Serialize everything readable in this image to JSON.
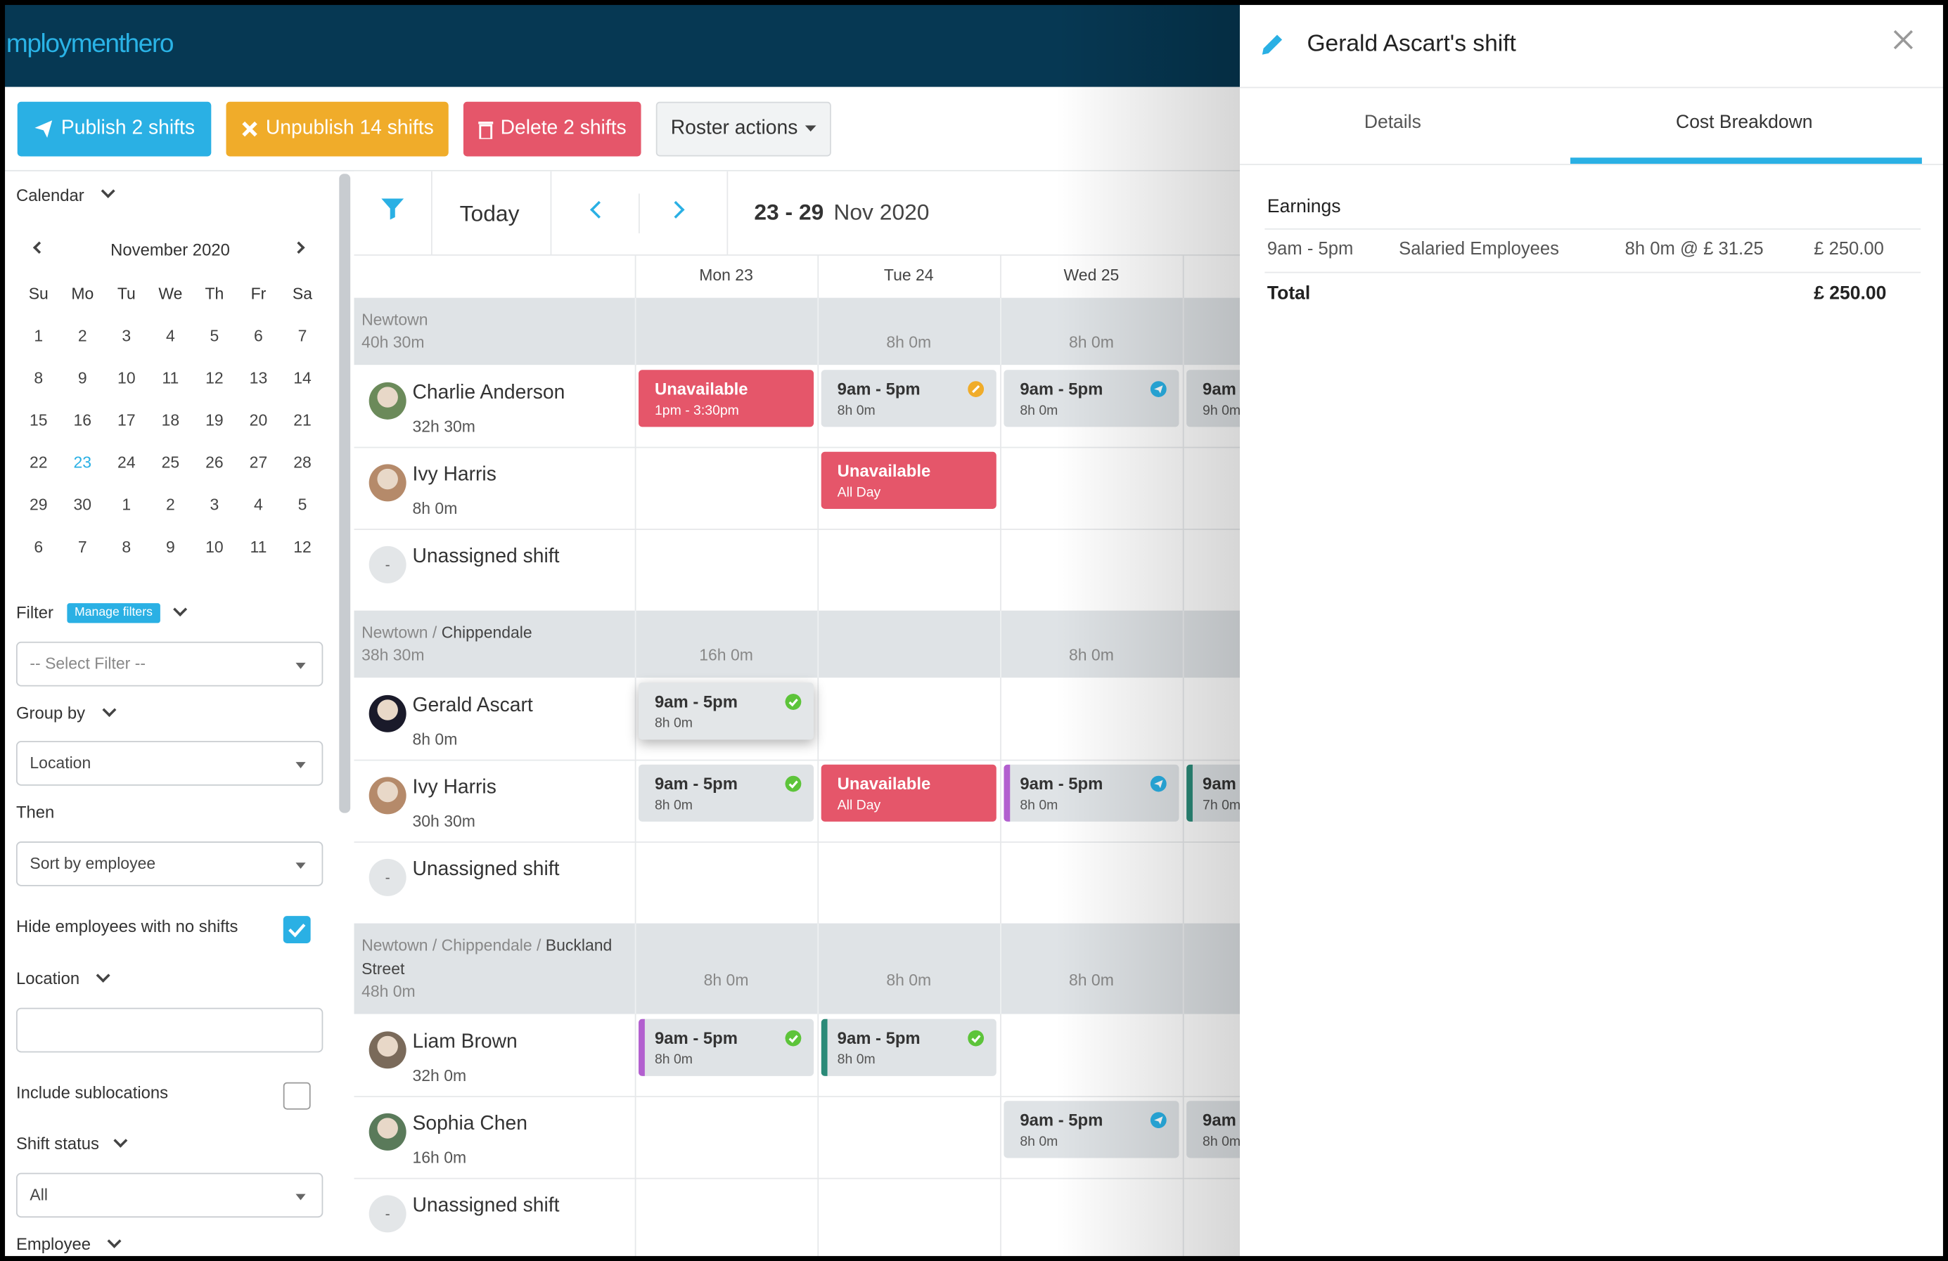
{
  "header": {
    "logo": "mploymenthero"
  },
  "toolbar": {
    "publish": "Publish 2 shifts",
    "unpublish": "Unpublish 14 shifts",
    "delete": "Delete 2 shifts",
    "roster_actions": "Roster actions"
  },
  "sidebar": {
    "calendar_label": "Calendar",
    "month": "November 2020",
    "weekdays": [
      "Su",
      "Mo",
      "Tu",
      "We",
      "Th",
      "Fr",
      "Sa"
    ],
    "weeks": [
      [
        1,
        2,
        3,
        4,
        5,
        6,
        7
      ],
      [
        8,
        9,
        10,
        11,
        12,
        13,
        14
      ],
      [
        15,
        16,
        17,
        18,
        19,
        20,
        21
      ],
      [
        22,
        23,
        24,
        25,
        26,
        27,
        28
      ],
      [
        29,
        30,
        1,
        2,
        3,
        4,
        5
      ],
      [
        6,
        7,
        8,
        9,
        10,
        11,
        12
      ]
    ],
    "today": 23,
    "filter_label": "Filter",
    "manage_filters": "Manage filters",
    "filter_placeholder": "-- Select Filter --",
    "group_by_label": "Group by",
    "group_by_value": "Location",
    "then_label": "Then",
    "then_value": "Sort by employee",
    "hide_label": "Hide employees with no shifts",
    "hide_checked": true,
    "location_label": "Location",
    "sublocations_label": "Include sublocations",
    "sublocations_checked": false,
    "shift_status_label": "Shift status",
    "shift_status_value": "All",
    "employee_label": "Employee"
  },
  "roster": {
    "today": "Today",
    "range": "23 - 29",
    "month": "Nov 2020",
    "days": [
      "Mon 23",
      "Tue 24",
      "Wed 25"
    ],
    "groups": [
      {
        "location": "Newtown",
        "total": "40h 30m",
        "day_totals": [
          null,
          "8h 0m",
          "8h 0m"
        ],
        "rows": [
          {
            "name": "Charlie Anderson",
            "hours": "32h 30m",
            "avatar": "#6b8a5a",
            "cells": [
              {
                "time": "Unavailable",
                "hours": "1pm - 3:30pm",
                "status": "unavailable"
              },
              {
                "time": "9am - 5pm",
                "hours": "8h 0m",
                "status": "pending"
              },
              {
                "time": "9am - 5pm",
                "hours": "8h 0m",
                "status": "published"
              },
              {
                "time": "9am",
                "hours": "9h 0m"
              }
            ]
          },
          {
            "name": "Ivy Harris",
            "hours": "8h 0m",
            "avatar": "#b58a6a",
            "cells": [
              null,
              {
                "time": "Unavailable",
                "hours": "All Day",
                "status": "unavailable"
              },
              null,
              null
            ]
          },
          {
            "name": "Unassigned shift",
            "avatar_text": "-",
            "cells": [
              null,
              null,
              null,
              null
            ]
          }
        ]
      },
      {
        "location": "Newtown / ",
        "sublocation": "Chippendale",
        "total": "38h 30m",
        "day_totals": [
          "16h 0m",
          null,
          "8h 0m"
        ],
        "rows": [
          {
            "name": "Gerald Ascart",
            "hours": "8h 0m",
            "avatar": "#1a1a2a",
            "cells": [
              {
                "time": "9am - 5pm",
                "hours": "8h 0m",
                "status": "approved",
                "selected": true
              },
              null,
              null,
              null
            ]
          },
          {
            "name": "Ivy Harris",
            "hours": "30h 30m",
            "avatar": "#b58a6a",
            "cells": [
              {
                "time": "9am - 5pm",
                "hours": "8h 0m",
                "status": "approved"
              },
              {
                "time": "Unavailable",
                "hours": "All Day",
                "status": "unavailable"
              },
              {
                "time": "9am - 5pm",
                "hours": "8h 0m",
                "status": "published",
                "bar": "#b25fcf"
              },
              {
                "time": "9am",
                "hours": "7h 0m",
                "bar": "#2a8a78"
              }
            ]
          },
          {
            "name": "Unassigned shift",
            "avatar_text": "-",
            "cells": [
              null,
              null,
              null,
              null
            ]
          }
        ]
      },
      {
        "location": "Newtown / Chippendale / ",
        "sublocation": "Buckland Street",
        "total": "48h 0m",
        "day_totals": [
          "8h 0m",
          "8h 0m",
          "8h 0m"
        ],
        "rows": [
          {
            "name": "Liam Brown",
            "hours": "32h 0m",
            "avatar": "#7a6a5a",
            "cells": [
              {
                "time": "9am - 5pm",
                "hours": "8h 0m",
                "status": "approved",
                "bar": "#b25fcf"
              },
              {
                "time": "9am - 5pm",
                "hours": "8h 0m",
                "status": "approved",
                "bar": "#2a8a78"
              },
              null,
              null
            ]
          },
          {
            "name": "Sophia Chen",
            "hours": "16h 0m",
            "avatar": "#5a7a5a",
            "cells": [
              null,
              null,
              {
                "time": "9am - 5pm",
                "hours": "8h 0m",
                "status": "published"
              },
              {
                "time": "9am",
                "hours": "8h 0m"
              }
            ]
          },
          {
            "name": "Unassigned shift",
            "avatar_text": "-",
            "cells": [
              null,
              null,
              null,
              null
            ]
          }
        ]
      }
    ]
  },
  "panel": {
    "title": "Gerald Ascart's shift",
    "tabs": [
      "Details",
      "Cost Breakdown"
    ],
    "active_tab": 1,
    "section": "Earnings",
    "rows": [
      [
        "9am - 5pm",
        "Salaried Employees",
        "8h 0m @ £ 31.25",
        "£ 250.00"
      ]
    ],
    "total_label": "Total",
    "total_value": "£ 250.00"
  }
}
